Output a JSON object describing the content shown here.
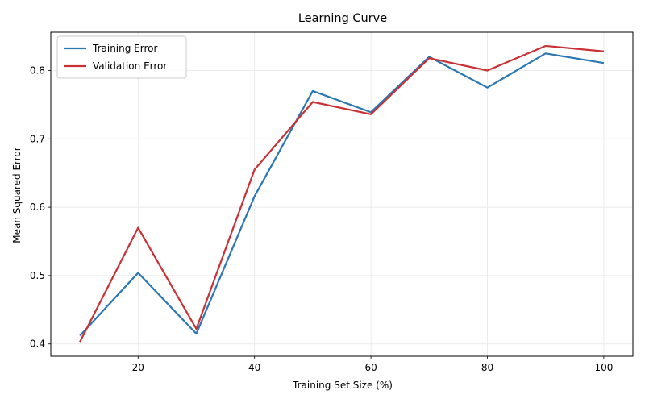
{
  "chart_data": {
    "type": "line",
    "title": "Learning Curve",
    "xlabel": "Training Set Size (%)",
    "ylabel": "Mean Squared Error",
    "x": [
      10,
      20,
      30,
      40,
      50,
      60,
      70,
      80,
      90,
      100
    ],
    "xlim": [
      5,
      105
    ],
    "ylim": [
      0.382,
      0.856
    ],
    "xticks": [
      20,
      40,
      60,
      80,
      100
    ],
    "yticks": [
      0.4,
      0.5,
      0.6,
      0.7,
      0.8
    ],
    "xtick_labels": [
      "20",
      "40",
      "60",
      "80",
      "100"
    ],
    "ytick_labels": [
      "0.4",
      "0.5",
      "0.6",
      "0.7",
      "0.8"
    ],
    "grid": true,
    "legend_position": "top-left",
    "series": [
      {
        "name": "Training Error",
        "color": "#2a77b4",
        "values": [
          0.412,
          0.504,
          0.415,
          0.616,
          0.77,
          0.739,
          0.82,
          0.775,
          0.825,
          0.811
        ]
      },
      {
        "name": "Validation Error",
        "color": "#c93135",
        "values": [
          0.403,
          0.57,
          0.422,
          0.655,
          0.754,
          0.736,
          0.818,
          0.8,
          0.836,
          0.828
        ]
      }
    ]
  }
}
